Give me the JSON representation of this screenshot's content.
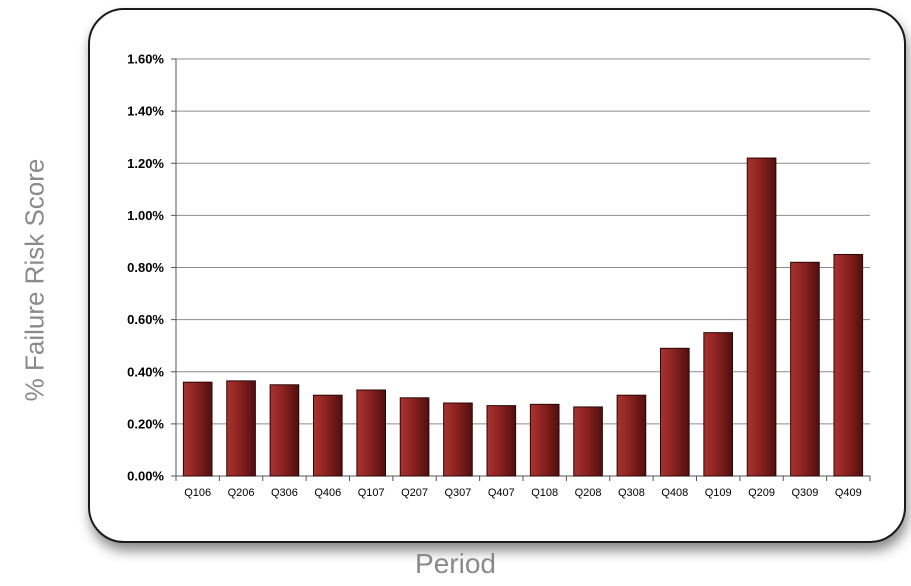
{
  "chart_data": {
    "type": "bar",
    "xlabel": "Period",
    "ylabel": "% Failure Risk Score",
    "categories": [
      "Q106",
      "Q206",
      "Q306",
      "Q406",
      "Q107",
      "Q207",
      "Q307",
      "Q407",
      "Q108",
      "Q208",
      "Q308",
      "Q408",
      "Q109",
      "Q209",
      "Q309",
      "Q409"
    ],
    "values": [
      0.0036,
      0.00365,
      0.0035,
      0.0031,
      0.0033,
      0.003,
      0.0028,
      0.0027,
      0.00275,
      0.00265,
      0.0031,
      0.0049,
      0.0055,
      0.0122,
      0.0082,
      0.0085
    ],
    "ylim": [
      0,
      0.016
    ],
    "yticks": [
      "0.00%",
      "0.20%",
      "0.40%",
      "0.60%",
      "0.80%",
      "1.00%",
      "1.20%",
      "1.40%",
      "1.60%"
    ],
    "grid": true,
    "bar_color": "#8b2220"
  }
}
